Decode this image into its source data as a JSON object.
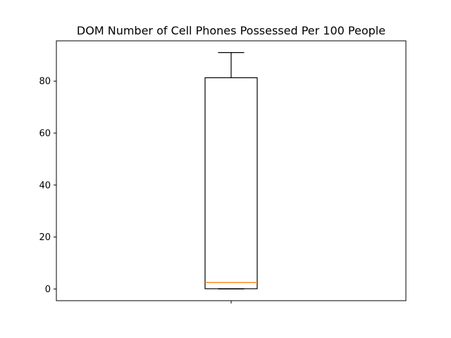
{
  "chart_data": {
    "type": "box",
    "title": "DOM Number of Cell Phones Possessed Per 100 People",
    "xlabel": "",
    "ylabel": "",
    "x_tick_labels": [
      ""
    ],
    "ylim": [
      -4.5,
      95.5
    ],
    "yticks": [
      0,
      20,
      40,
      60,
      80
    ],
    "ytick_labels": [
      "0",
      "20",
      "40",
      "60",
      "80"
    ],
    "grid": false,
    "boxes": [
      {
        "min": 0,
        "q1": 0.1,
        "median": 2.5,
        "q3": 81.3,
        "max": 91.0
      }
    ],
    "colors": {
      "box": "#000000",
      "median": "#ff7f0e",
      "axes": "#000000"
    }
  }
}
